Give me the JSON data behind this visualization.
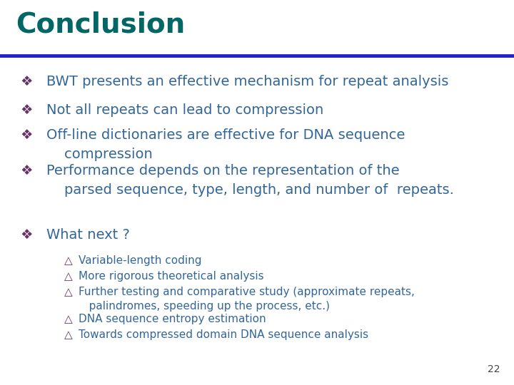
{
  "title": "Conclusion",
  "title_color": "#006666",
  "title_fontsize": 28,
  "line_color": "#2222CC",
  "bg_color": "#FFFFFF",
  "bullet1_color": "#663366",
  "text_color": "#336699",
  "bullet_items": [
    "BWT presents an effective mechanism for repeat analysis",
    "Not all repeats can lead to compression",
    "Off-line dictionaries are effective for DNA sequence\n    compression",
    "Performance depends on the representation of the\n    parsed sequence, type, length, and number of  repeats."
  ],
  "sub_header": "What next ?",
  "sub_items": [
    "Variable-length coding",
    "More rigorous theoretical analysis",
    "Further testing and comparative study (approximate repeats,\n   palindromes, speeding up the process, etc.)",
    "DNA sequence entropy estimation",
    "Towards compressed domain DNA sequence analysis"
  ],
  "page_number": "22",
  "bullet_symbol": "❖",
  "sub_bullet_symbol": "❖",
  "fontsize_main": 14,
  "fontsize_sub": 11
}
